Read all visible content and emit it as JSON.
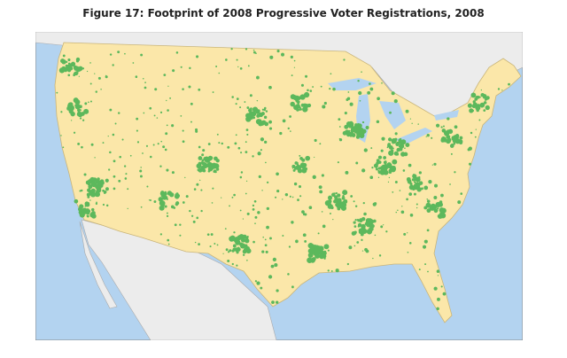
{
  "header": {
    "title": "Figure 17: Footprint of 2008 Progressive Voter Registrations, 2008"
  }
}
